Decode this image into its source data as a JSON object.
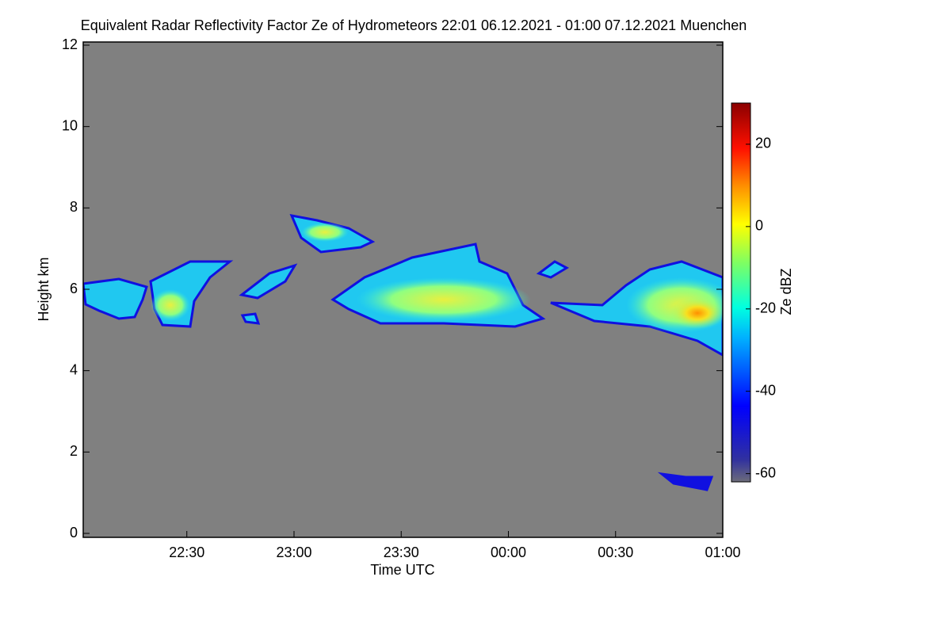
{
  "chart_data": {
    "type": "time-height",
    "title": "Equivalent Radar Reflectivity Factor Ze of Hydrometeors   22:01 06.12.2021 - 01:00 07.12.2021 Muenchen",
    "x_label": "Time UTC",
    "y_label": "Height km",
    "xlim": [
      "22:01",
      "01:00"
    ],
    "xticks": [
      "22:30",
      "23:00",
      "23:30",
      "00:00",
      "00:30",
      "01:00"
    ],
    "ylim": [
      0,
      12
    ],
    "yticks": [
      0,
      2,
      4,
      6,
      8,
      10,
      12
    ],
    "colorbar": {
      "label": "Ze dBZ",
      "lim": [
        -62,
        30
      ],
      "ticks": [
        -60,
        -40,
        -20,
        0,
        20
      ]
    },
    "background": "#808080"
  }
}
